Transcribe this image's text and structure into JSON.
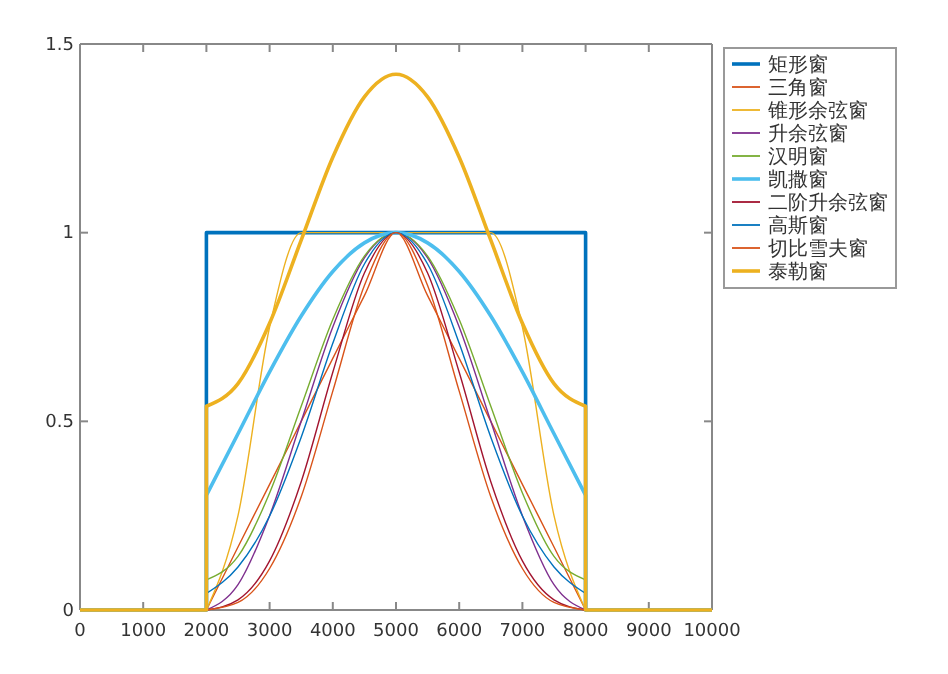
{
  "chart_data": {
    "type": "line",
    "legend": "top right",
    "xlim": [
      0,
      10000
    ],
    "ylim": [
      0,
      1.5
    ],
    "xticks": [
      0,
      1000,
      2000,
      3000,
      4000,
      5000,
      6000,
      7000,
      8000,
      9000,
      10000
    ],
    "yticks": [
      0,
      0.5,
      1,
      1.5
    ],
    "x": [
      0,
      2000,
      2000,
      2500,
      3000,
      3500,
      4000,
      4500,
      5000,
      5500,
      6000,
      6500,
      7000,
      7500,
      8000,
      8000,
      10000
    ],
    "series": [
      {
        "name": "矩形窗",
        "color": "#0072bd",
        "values": [
          0,
          0,
          1,
          1,
          1,
          1,
          1,
          1,
          1,
          1,
          1,
          1,
          1,
          1,
          1,
          0,
          0
        ]
      },
      {
        "name": "三角窗",
        "color": "#d95319",
        "values": [
          0,
          0,
          0,
          0.167,
          0.333,
          0.5,
          0.667,
          0.833,
          1,
          0.833,
          0.667,
          0.5,
          0.333,
          0.167,
          0,
          0,
          0
        ]
      },
      {
        "name": "锥形余弦窗",
        "color": "#edb120",
        "values": [
          0,
          0,
          0,
          0.25,
          0.75,
          1,
          1,
          1,
          1,
          1,
          1,
          1,
          0.75,
          0.25,
          0,
          0,
          0
        ]
      },
      {
        "name": "升余弦窗",
        "color": "#7e2f8e",
        "values": [
          0,
          0,
          0,
          0.067,
          0.25,
          0.5,
          0.75,
          0.933,
          1,
          0.933,
          0.75,
          0.5,
          0.25,
          0.067,
          0,
          0,
          0
        ]
      },
      {
        "name": "汉明窗",
        "color": "#77ac30",
        "values": [
          0,
          0,
          0.08,
          0.142,
          0.31,
          0.54,
          0.77,
          0.938,
          1,
          0.938,
          0.77,
          0.54,
          0.31,
          0.142,
          0.08,
          0,
          0
        ]
      },
      {
        "name": "凯撒窗",
        "color": "#4dbeee",
        "values": [
          0,
          0,
          0.304,
          0.467,
          0.631,
          0.779,
          0.897,
          0.973,
          1,
          0.973,
          0.897,
          0.779,
          0.631,
          0.467,
          0.304,
          0,
          0
        ]
      },
      {
        "name": "二阶升余弦窗",
        "color": "#a2142f",
        "values": [
          0,
          0,
          0,
          0.027,
          0.13,
          0.34,
          0.63,
          0.893,
          1,
          0.893,
          0.63,
          0.34,
          0.13,
          0.027,
          0,
          0,
          0
        ]
      },
      {
        "name": "高斯窗",
        "color": "#0072bd",
        "values": [
          0,
          0,
          0.044,
          0.114,
          0.249,
          0.458,
          0.707,
          0.917,
          1,
          0.917,
          0.707,
          0.458,
          0.249,
          0.114,
          0.044,
          0,
          0
        ]
      },
      {
        "name": "切比雪夫窗",
        "color": "#d95319",
        "values": [
          0,
          0,
          0,
          0.02,
          0.11,
          0.3,
          0.58,
          0.86,
          1,
          0.86,
          0.58,
          0.3,
          0.11,
          0.02,
          0,
          0,
          0
        ]
      },
      {
        "name": "泰勒窗",
        "color": "#edb120",
        "values": [
          0,
          0,
          0.54,
          0.6,
          0.76,
          0.98,
          1.2,
          1.36,
          1.42,
          1.36,
          1.2,
          0.98,
          0.76,
          0.6,
          0.54,
          0,
          0
        ]
      }
    ]
  }
}
